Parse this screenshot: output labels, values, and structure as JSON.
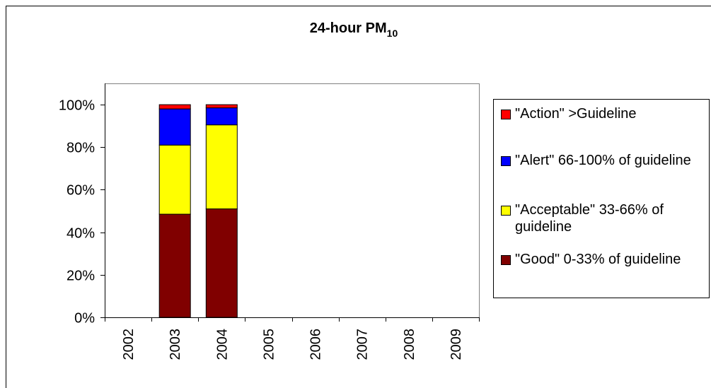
{
  "chart_data": {
    "type": "stacked_bar",
    "title": "24-hour PM",
    "title_subscript": "10",
    "categories": [
      "2002",
      "2003",
      "2004",
      "2005",
      "2006",
      "2007",
      "2008",
      "2009"
    ],
    "series": [
      {
        "name": "\"Good\" 0-33% of guideline",
        "color": "#800000",
        "values": [
          null,
          48.5,
          51,
          null,
          null,
          null,
          null,
          null
        ]
      },
      {
        "name": "\"Acceptable\" 33-66% of guideline",
        "color": "#ffff00",
        "values": [
          null,
          32.5,
          39.5,
          null,
          null,
          null,
          null,
          null
        ]
      },
      {
        "name": "\"Alert\" 66-100% of guideline",
        "color": "#0000ff",
        "values": [
          null,
          17,
          8,
          null,
          null,
          null,
          null,
          null
        ]
      },
      {
        "name": "\"Action\" >Guideline",
        "color": "#ff0000",
        "values": [
          null,
          2,
          1.5,
          null,
          null,
          null,
          null,
          null
        ]
      }
    ],
    "ylim": [
      0,
      110
    ],
    "yticks": [
      {
        "value": 0,
        "label": "0%"
      },
      {
        "value": 20,
        "label": "20%"
      },
      {
        "value": 40,
        "label": "40%"
      },
      {
        "value": 60,
        "label": "60%"
      },
      {
        "value": 80,
        "label": "80%"
      },
      {
        "value": 100,
        "label": "100%"
      }
    ],
    "grid": false,
    "legend": "right"
  }
}
